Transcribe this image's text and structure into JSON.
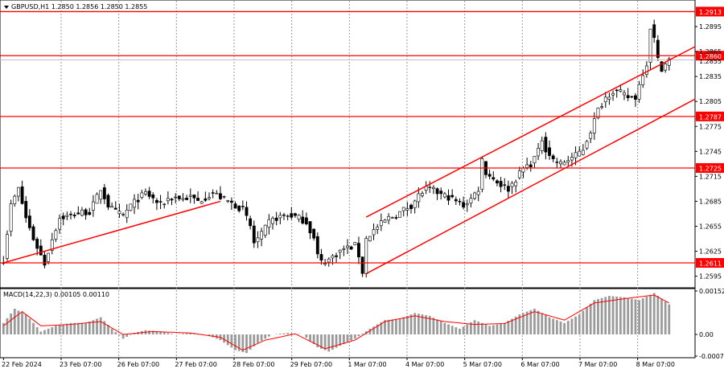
{
  "chart_data": [
    {
      "type": "candlestick",
      "symbol_info": "GBPUSD,H1  1.2850 1.2856 1.2850 1.2855",
      "ylim": [
        1.2583,
        1.2925
      ],
      "yticks": [
        "1.2895",
        "1.2865",
        "1.2835",
        "1.2805",
        "1.2775",
        "1.2745",
        "1.2715",
        "1.2685",
        "1.2655",
        "1.2625",
        "1.2595"
      ],
      "xticks": [
        "22 Feb 2024",
        "23 Feb 07:00",
        "26 Feb 07:00",
        "27 Feb 07:00",
        "28 Feb 07:00",
        "29 Feb 07:00",
        "1 Mar 07:00",
        "4 Mar 07:00",
        "5 Mar 07:00",
        "6 Mar 07:00",
        "7 Mar 07:00",
        "8 Mar 07:00"
      ],
      "current_price": "1.2855",
      "colors": {
        "up": "#000000",
        "down": "#000000",
        "levels": "#ff0000",
        "grid": "#999999",
        "price_line": "#c0c0c0"
      },
      "levels": [
        {
          "label": "1.2913",
          "price": 1.2913
        },
        {
          "label": "1.2860",
          "price": 1.286
        },
        {
          "label": "1.2787",
          "price": 1.2787
        },
        {
          "label": "1.2725",
          "price": 1.2725
        },
        {
          "label": "1.2611",
          "price": 1.2611
        }
      ],
      "price_path": [
        [
          0,
          1.2615
        ],
        [
          2,
          1.268
        ],
        [
          4,
          1.27
        ],
        [
          6,
          1.2665
        ],
        [
          8,
          1.264
        ],
        [
          10,
          1.262
        ],
        [
          11,
          1.261
        ],
        [
          13,
          1.264
        ],
        [
          15,
          1.2665
        ],
        [
          18,
          1.2668
        ],
        [
          21,
          1.2672
        ],
        [
          23,
          1.2672
        ],
        [
          25,
          1.269
        ],
        [
          26,
          1.27
        ],
        [
          28,
          1.268
        ],
        [
          30,
          1.2672
        ],
        [
          32,
          1.2668
        ],
        [
          34,
          1.268
        ],
        [
          36,
          1.2688
        ],
        [
          38,
          1.2695
        ],
        [
          40,
          1.2688
        ],
        [
          42,
          1.268
        ],
        [
          44,
          1.2688
        ],
        [
          46,
          1.269
        ],
        [
          48,
          1.2688
        ],
        [
          50,
          1.269
        ],
        [
          52,
          1.2685
        ],
        [
          54,
          1.269
        ],
        [
          56,
          1.2695
        ],
        [
          58,
          1.269
        ],
        [
          60,
          1.2685
        ],
        [
          62,
          1.268
        ],
        [
          64,
          1.2675
        ],
        [
          66,
          1.2655
        ],
        [
          67,
          1.2635
        ],
        [
          69,
          1.2645
        ],
        [
          71,
          1.266
        ],
        [
          73,
          1.2665
        ],
        [
          75,
          1.2668
        ],
        [
          77,
          1.2668
        ],
        [
          79,
          1.2665
        ],
        [
          81,
          1.266
        ],
        [
          83,
          1.264
        ],
        [
          84,
          1.262
        ],
        [
          85,
          1.2612
        ],
        [
          87,
          1.2615
        ],
        [
          89,
          1.2622
        ],
        [
          91,
          1.2628
        ],
        [
          93,
          1.263
        ],
        [
          94,
          1.2632
        ],
        [
          95,
          1.262
        ],
        [
          96,
          1.26
        ],
        [
          97,
          1.264
        ],
        [
          99,
          1.265
        ],
        [
          101,
          1.2658
        ],
        [
          103,
          1.2665
        ],
        [
          105,
          1.2668
        ],
        [
          107,
          1.2675
        ],
        [
          109,
          1.268
        ],
        [
          111,
          1.2692
        ],
        [
          113,
          1.27
        ],
        [
          115,
          1.2698
        ],
        [
          117,
          1.2693
        ],
        [
          119,
          1.269
        ],
        [
          121,
          1.2685
        ],
        [
          123,
          1.268
        ],
        [
          125,
          1.2688
        ],
        [
          127,
          1.27
        ],
        [
          128,
          1.2735
        ],
        [
          129,
          1.272
        ],
        [
          131,
          1.2712
        ],
        [
          133,
          1.2705
        ],
        [
          135,
          1.27
        ],
        [
          137,
          1.2712
        ],
        [
          139,
          1.2725
        ],
        [
          141,
          1.273
        ],
        [
          143,
          1.2745
        ],
        [
          144,
          1.276
        ],
        [
          145,
          1.2748
        ],
        [
          147,
          1.2735
        ],
        [
          149,
          1.273
        ],
        [
          151,
          1.2735
        ],
        [
          153,
          1.274
        ],
        [
          155,
          1.2748
        ],
        [
          157,
          1.277
        ],
        [
          159,
          1.2795
        ],
        [
          161,
          1.281
        ],
        [
          163,
          1.2818
        ],
        [
          165,
          1.2815
        ],
        [
          167,
          1.281
        ],
        [
          169,
          1.281
        ],
        [
          171,
          1.284
        ],
        [
          172,
          1.285
        ],
        [
          173,
          1.2895
        ],
        [
          174,
          1.288
        ],
        [
          175,
          1.2855
        ],
        [
          176,
          1.2845
        ],
        [
          177,
          1.285
        ],
        [
          178,
          1.2855
        ]
      ],
      "trendlines": [
        {
          "from": [
            0,
            1.2611
          ],
          "to": [
            58,
            1.2685
          ]
        },
        {
          "from": [
            97,
            1.2666
          ],
          "to": [
            185,
            1.2871
          ]
        },
        {
          "from": [
            97,
            1.2598
          ],
          "to": [
            185,
            1.2808
          ]
        }
      ],
      "x_axis_labels_index": [
        0,
        15,
        30,
        45,
        60,
        75,
        90,
        105,
        120,
        135,
        150,
        165
      ]
    },
    {
      "type": "histogram+line",
      "label": "MACD(14,22,3) 0.00105 0.00110",
      "yticks": [
        "0.00152",
        "0.00",
        "-0.00076"
      ],
      "ylim": [
        -0.00076,
        0.00152
      ],
      "macd_path": [
        [
          0,
          0.0004
        ],
        [
          3,
          0.0009
        ],
        [
          6,
          0.0007
        ],
        [
          10,
          0.0001
        ],
        [
          14,
          0.0003
        ],
        [
          18,
          0.0004
        ],
        [
          22,
          0.0004
        ],
        [
          26,
          0.0006
        ],
        [
          29,
          0.0002
        ],
        [
          32,
          -0.00015
        ],
        [
          35,
          5e-05
        ],
        [
          38,
          0.00015
        ],
        [
          42,
          0.0001
        ],
        [
          46,
          0.0
        ],
        [
          50,
          5e-05
        ],
        [
          54,
          0.0
        ],
        [
          58,
          -0.0002
        ],
        [
          62,
          -0.00055
        ],
        [
          65,
          -0.00065
        ],
        [
          68,
          -0.0003
        ],
        [
          72,
          0.0
        ],
        [
          76,
          5e-05
        ],
        [
          80,
          0.0
        ],
        [
          84,
          -0.00045
        ],
        [
          87,
          -0.0006
        ],
        [
          90,
          -0.0004
        ],
        [
          94,
          -0.00015
        ],
        [
          98,
          0.0002
        ],
        [
          102,
          0.0005
        ],
        [
          106,
          0.00055
        ],
        [
          110,
          0.00075
        ],
        [
          114,
          0.00065
        ],
        [
          118,
          0.0004
        ],
        [
          122,
          0.0002
        ],
        [
          126,
          0.0005
        ],
        [
          130,
          0.0003
        ],
        [
          134,
          0.0004
        ],
        [
          138,
          0.0007
        ],
        [
          142,
          0.0009
        ],
        [
          146,
          0.0006
        ],
        [
          150,
          0.0004
        ],
        [
          154,
          0.0007
        ],
        [
          158,
          0.0012
        ],
        [
          162,
          0.00135
        ],
        [
          166,
          0.0013
        ],
        [
          170,
          0.0012
        ],
        [
          174,
          0.00145
        ],
        [
          178,
          0.00105
        ]
      ],
      "signal_path": [
        [
          0,
          0.0003
        ],
        [
          5,
          0.0008
        ],
        [
          10,
          0.0003
        ],
        [
          18,
          0.00035
        ],
        [
          26,
          0.00045
        ],
        [
          32,
          0.0
        ],
        [
          40,
          0.0001
        ],
        [
          50,
          5e-05
        ],
        [
          58,
          -0.0001
        ],
        [
          64,
          -0.00055
        ],
        [
          70,
          -0.0002
        ],
        [
          78,
          2e-05
        ],
        [
          86,
          -0.0005
        ],
        [
          94,
          -0.0002
        ],
        [
          102,
          0.00045
        ],
        [
          110,
          0.00065
        ],
        [
          118,
          0.00045
        ],
        [
          126,
          0.00035
        ],
        [
          134,
          0.00038
        ],
        [
          142,
          0.0008
        ],
        [
          150,
          0.0005
        ],
        [
          158,
          0.0011
        ],
        [
          166,
          0.00125
        ],
        [
          174,
          0.00138
        ],
        [
          178,
          0.0011
        ]
      ]
    }
  ]
}
